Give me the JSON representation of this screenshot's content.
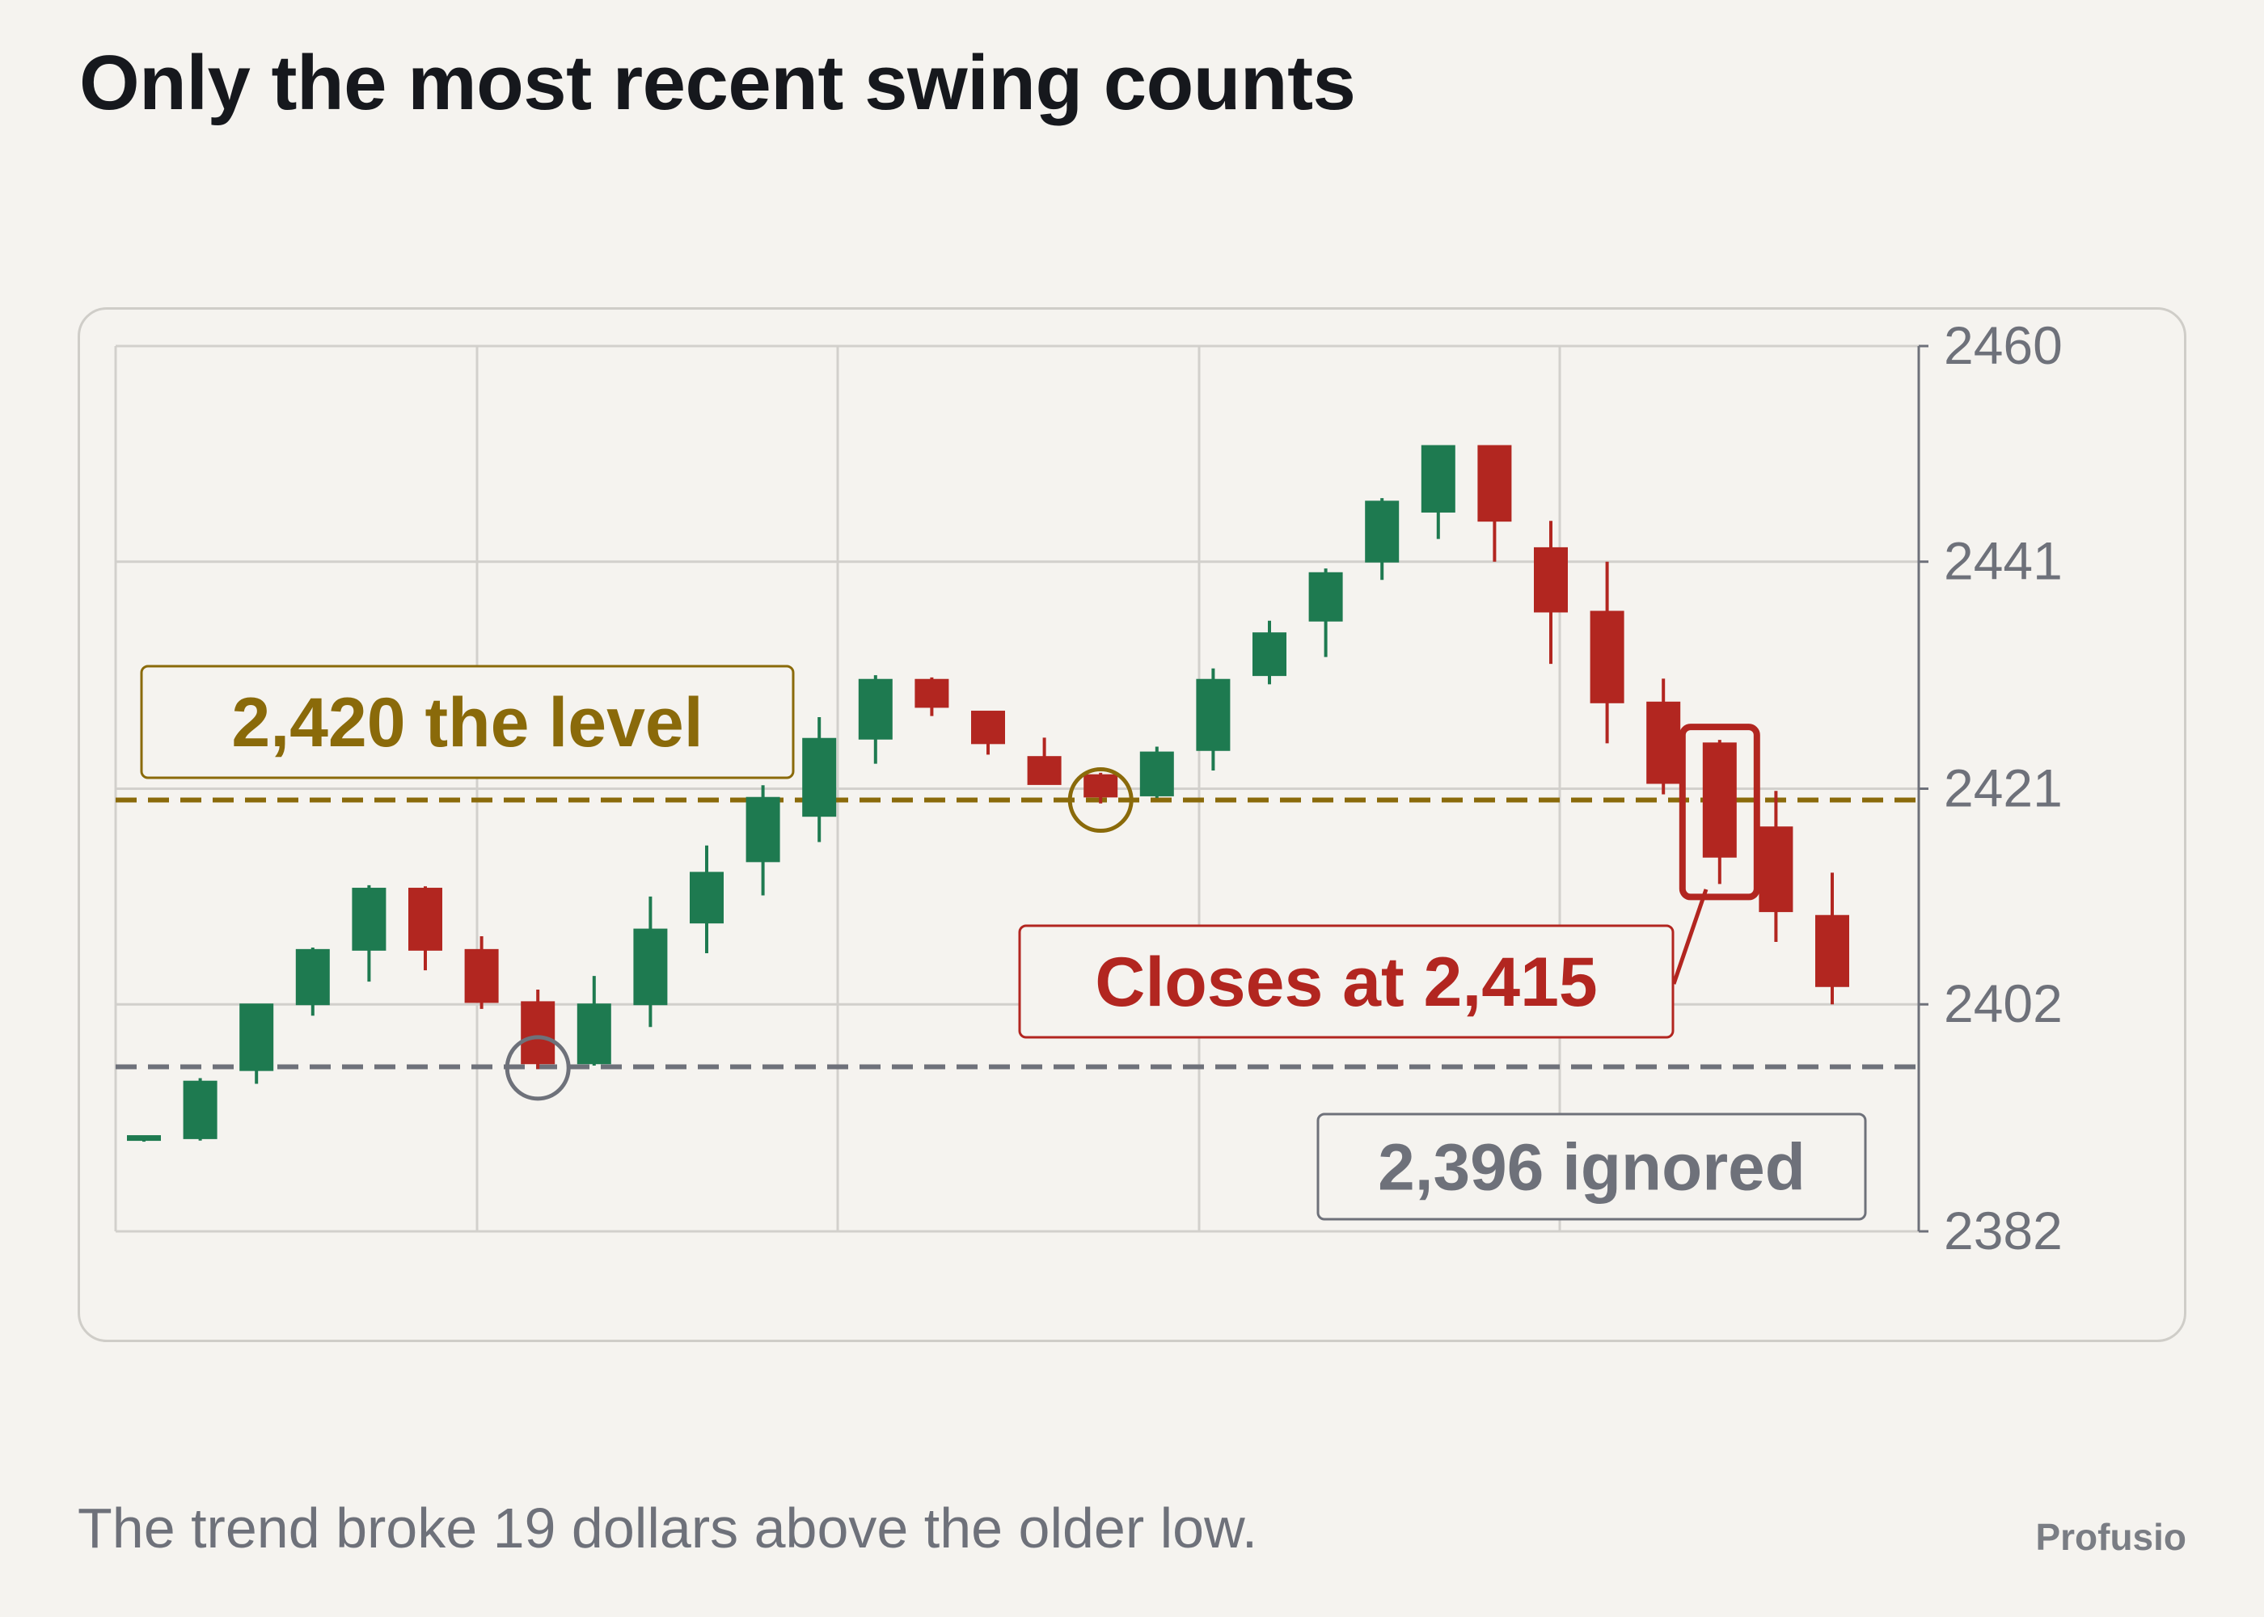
{
  "title": "Only the most recent swing counts",
  "subtitle": "The trend broke 19 dollars above the older low.",
  "brand": "Profusio",
  "chart_data": {
    "type": "candlestick",
    "ylim": [
      2382,
      2460
    ],
    "yticks": [
      "2460",
      "2441",
      "2421",
      "2402",
      "2382"
    ],
    "grid": true,
    "colors": {
      "up": "#1e7a50",
      "down": "#b22620",
      "level": "#8a6a0a",
      "ignored": "#6e717a",
      "grid": "#d2d0cc",
      "axis": "#6e717a"
    },
    "candles": [
      {
        "o": 2390.2,
        "h": 2390.4,
        "l": 2389.9,
        "c": 2390.4
      },
      {
        "o": 2390.2,
        "h": 2395.5,
        "l": 2390.0,
        "c": 2395.2
      },
      {
        "o": 2396.2,
        "h": 2402.0,
        "l": 2395.0,
        "c": 2402.0
      },
      {
        "o": 2402.0,
        "h": 2407.0,
        "l": 2401.0,
        "c": 2406.8
      },
      {
        "o": 2406.8,
        "h": 2412.5,
        "l": 2404.0,
        "c": 2412.2
      },
      {
        "o": 2412.2,
        "h": 2412.4,
        "l": 2405.0,
        "c": 2406.8
      },
      {
        "o": 2406.8,
        "h": 2408.0,
        "l": 2401.6,
        "c": 2402.2
      },
      {
        "o": 2402.2,
        "h": 2403.3,
        "l": 2396.3,
        "c": 2396.8
      },
      {
        "o": 2396.8,
        "h": 2404.5,
        "l": 2396.6,
        "c": 2402.0
      },
      {
        "o": 2402.0,
        "h": 2411.5,
        "l": 2400.0,
        "c": 2408.6
      },
      {
        "o": 2409.2,
        "h": 2416.0,
        "l": 2406.5,
        "c": 2413.6
      },
      {
        "o": 2414.6,
        "h": 2421.3,
        "l": 2411.6,
        "c": 2420.2
      },
      {
        "o": 2418.6,
        "h": 2427.3,
        "l": 2416.3,
        "c": 2425.4
      },
      {
        "o": 2425.4,
        "h": 2431.0,
        "l": 2423.2,
        "c": 2430.6
      },
      {
        "o": 2430.6,
        "h": 2430.8,
        "l": 2427.4,
        "c": 2428.2
      },
      {
        "o": 2427.8,
        "h": 2427.8,
        "l": 2424.0,
        "c": 2425.0
      },
      {
        "o": 2423.8,
        "h": 2425.5,
        "l": 2421.8,
        "c": 2421.4
      },
      {
        "o": 2422.2,
        "h": 2422.4,
        "l": 2419.7,
        "c": 2420.3
      },
      {
        "o": 2420.4,
        "h": 2424.7,
        "l": 2420.2,
        "c": 2424.2
      },
      {
        "o": 2424.4,
        "h": 2431.6,
        "l": 2422.6,
        "c": 2430.6
      },
      {
        "o": 2431.0,
        "h": 2435.8,
        "l": 2430.2,
        "c": 2434.7
      },
      {
        "o": 2435.8,
        "h": 2440.4,
        "l": 2432.6,
        "c": 2440.0
      },
      {
        "o": 2441.0,
        "h": 2446.6,
        "l": 2439.4,
        "c": 2446.3
      },
      {
        "o": 2445.4,
        "h": 2451.2,
        "l": 2443.0,
        "c": 2451.2
      },
      {
        "o": 2451.2,
        "h": 2451.2,
        "l": 2441.0,
        "c": 2444.6
      },
      {
        "o": 2442.2,
        "h": 2444.6,
        "l": 2432.0,
        "c": 2436.6
      },
      {
        "o": 2436.6,
        "h": 2441.0,
        "l": 2425.0,
        "c": 2428.6
      },
      {
        "o": 2428.6,
        "h": 2430.7,
        "l": 2420.5,
        "c": 2421.5
      },
      {
        "o": 2425.0,
        "h": 2425.3,
        "l": 2412.6,
        "c": 2415.0
      },
      {
        "o": 2417.6,
        "h": 2420.8,
        "l": 2407.5,
        "c": 2410.2
      },
      {
        "o": 2409.8,
        "h": 2413.6,
        "l": 2402.0,
        "c": 2403.6
      }
    ],
    "levels": [
      {
        "name": "level",
        "value": 2420,
        "label": "2,420 the level"
      },
      {
        "name": "ignored",
        "value": 2396.5,
        "label": "2,396 ignored"
      }
    ],
    "annotations": [
      {
        "name": "close",
        "candle_index": 28,
        "label": "Closes at 2,415"
      }
    ],
    "circled_candles": [
      7,
      17
    ]
  }
}
